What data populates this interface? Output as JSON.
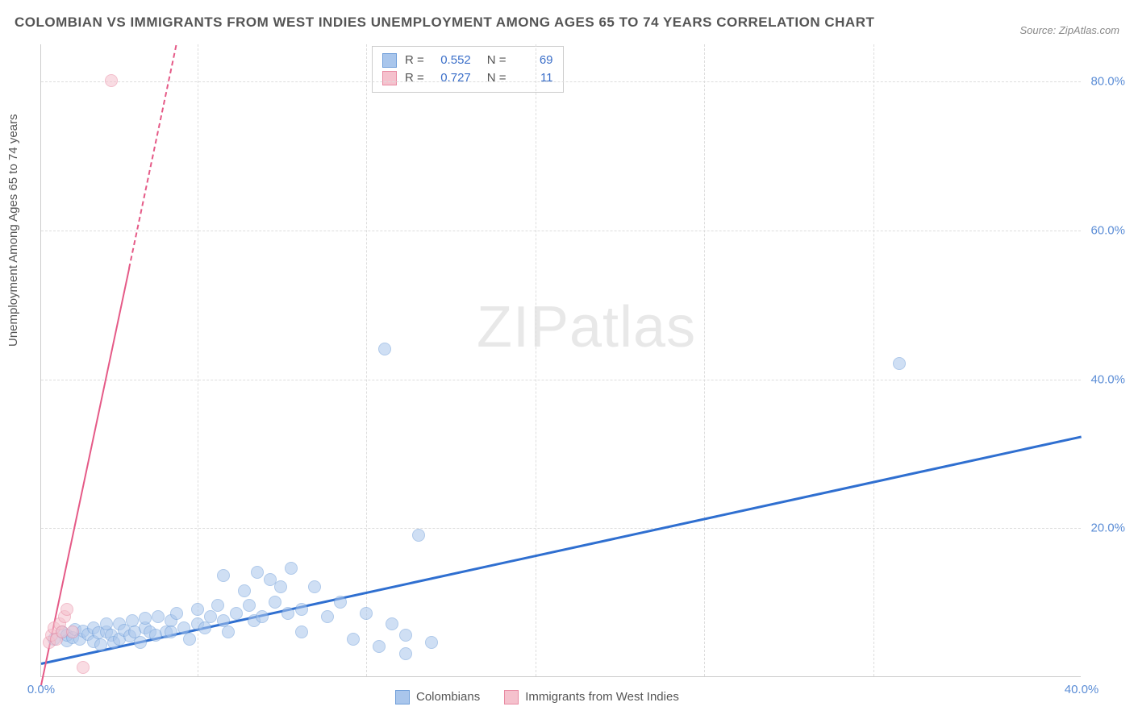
{
  "title": "COLOMBIAN VS IMMIGRANTS FROM WEST INDIES UNEMPLOYMENT AMONG AGES 65 TO 74 YEARS CORRELATION CHART",
  "source": "Source: ZipAtlas.com",
  "watermark": "ZIPatlas",
  "y_axis_label": "Unemployment Among Ages 65 to 74 years",
  "chart": {
    "type": "scatter",
    "xlim": [
      0,
      40
    ],
    "ylim": [
      0,
      85
    ],
    "x_ticks": [
      0.0,
      40.0
    ],
    "x_tick_labels": [
      "0.0%",
      "40.0%"
    ],
    "y_ticks": [
      20.0,
      40.0,
      60.0,
      80.0
    ],
    "y_tick_labels": [
      "20.0%",
      "40.0%",
      "60.0%",
      "80.0%"
    ],
    "grid_color": "#dddddd",
    "axis_color": "#cccccc",
    "background": "#ffffff",
    "tick_color": "#5b8dd6",
    "label_color": "#555555",
    "marker_radius": 8,
    "marker_opacity": 0.55,
    "series": [
      {
        "name": "Colombians",
        "fill": "#a9c6ec",
        "stroke": "#6f9ed9",
        "trend_color": "#2f6fd0",
        "trend_width": 3,
        "trend_dash": "solid",
        "R": "0.552",
        "N": "69",
        "trend_from": [
          0,
          2.0
        ],
        "trend_to": [
          40,
          32.5
        ],
        "points": [
          [
            0.5,
            5.0
          ],
          [
            0.8,
            6.0
          ],
          [
            1.0,
            4.8
          ],
          [
            1.0,
            5.5
          ],
          [
            1.2,
            5.2
          ],
          [
            1.3,
            6.3
          ],
          [
            1.5,
            5.0
          ],
          [
            1.6,
            6.1
          ],
          [
            1.8,
            5.6
          ],
          [
            2.0,
            6.5
          ],
          [
            2.0,
            4.7
          ],
          [
            2.2,
            5.8
          ],
          [
            2.3,
            4.2
          ],
          [
            2.5,
            6.0
          ],
          [
            2.5,
            7.0
          ],
          [
            2.7,
            5.5
          ],
          [
            2.8,
            4.5
          ],
          [
            3.0,
            7.0
          ],
          [
            3.0,
            5.0
          ],
          [
            3.2,
            6.2
          ],
          [
            3.4,
            5.4
          ],
          [
            3.5,
            7.5
          ],
          [
            3.6,
            6.0
          ],
          [
            3.8,
            4.5
          ],
          [
            4.0,
            6.5
          ],
          [
            4.0,
            7.8
          ],
          [
            4.2,
            6.0
          ],
          [
            4.4,
            5.5
          ],
          [
            4.5,
            8.0
          ],
          [
            4.8,
            6.0
          ],
          [
            5.0,
            7.5
          ],
          [
            5.0,
            6.0
          ],
          [
            5.2,
            8.5
          ],
          [
            5.5,
            6.5
          ],
          [
            5.7,
            5.0
          ],
          [
            6.0,
            9.0
          ],
          [
            6.0,
            7.0
          ],
          [
            6.3,
            6.5
          ],
          [
            6.5,
            8.0
          ],
          [
            6.8,
            9.5
          ],
          [
            7.0,
            7.5
          ],
          [
            7.0,
            13.5
          ],
          [
            7.2,
            6.0
          ],
          [
            7.5,
            8.5
          ],
          [
            7.8,
            11.5
          ],
          [
            8.0,
            9.5
          ],
          [
            8.2,
            7.5
          ],
          [
            8.3,
            14.0
          ],
          [
            8.5,
            8.0
          ],
          [
            8.8,
            13.0
          ],
          [
            9.0,
            10.0
          ],
          [
            9.2,
            12.0
          ],
          [
            9.5,
            8.5
          ],
          [
            9.6,
            14.5
          ],
          [
            10.0,
            9.0
          ],
          [
            10.0,
            6.0
          ],
          [
            10.5,
            12.0
          ],
          [
            11.0,
            8.0
          ],
          [
            11.5,
            10.0
          ],
          [
            12.0,
            5.0
          ],
          [
            12.5,
            8.5
          ],
          [
            13.0,
            4.0
          ],
          [
            13.5,
            7.0
          ],
          [
            14.0,
            5.5
          ],
          [
            14.0,
            3.0
          ],
          [
            14.5,
            19.0
          ],
          [
            15.0,
            4.5
          ],
          [
            13.2,
            44.0
          ],
          [
            33.0,
            42.0
          ]
        ]
      },
      {
        "name": "Immigrants from West Indies",
        "fill": "#f5c1cd",
        "stroke": "#e88aa2",
        "trend_color": "#e55a87",
        "trend_width": 2,
        "trend_dash": "solid",
        "trend_dash_tail": "dashed",
        "R": "0.727",
        "N": "11",
        "trend_from": [
          0,
          -1.0
        ],
        "trend_to": [
          5.2,
          85.0
        ],
        "trend_solid_end_y": 55.0,
        "points": [
          [
            0.3,
            4.5
          ],
          [
            0.4,
            5.5
          ],
          [
            0.5,
            6.5
          ],
          [
            0.6,
            5.0
          ],
          [
            0.7,
            7.0
          ],
          [
            0.8,
            6.0
          ],
          [
            0.9,
            8.0
          ],
          [
            1.0,
            9.0
          ],
          [
            1.2,
            6.0
          ],
          [
            1.6,
            1.2
          ],
          [
            2.7,
            80.0
          ]
        ]
      }
    ],
    "vertical_gridlines_at_x": [
      6.0,
      12.5,
      19.0,
      25.5,
      32.0
    ],
    "horizontal_gridlines_at_y": [
      20.0,
      40.0,
      60.0,
      80.0
    ]
  },
  "legend_top": {
    "rows": [
      {
        "series_idx": 0,
        "r_label": "R =",
        "n_label": "N ="
      },
      {
        "series_idx": 1,
        "r_label": "R =",
        "n_label": "N ="
      }
    ]
  },
  "legend_bottom": {
    "items": [
      {
        "series_idx": 0
      },
      {
        "series_idx": 1
      }
    ]
  }
}
